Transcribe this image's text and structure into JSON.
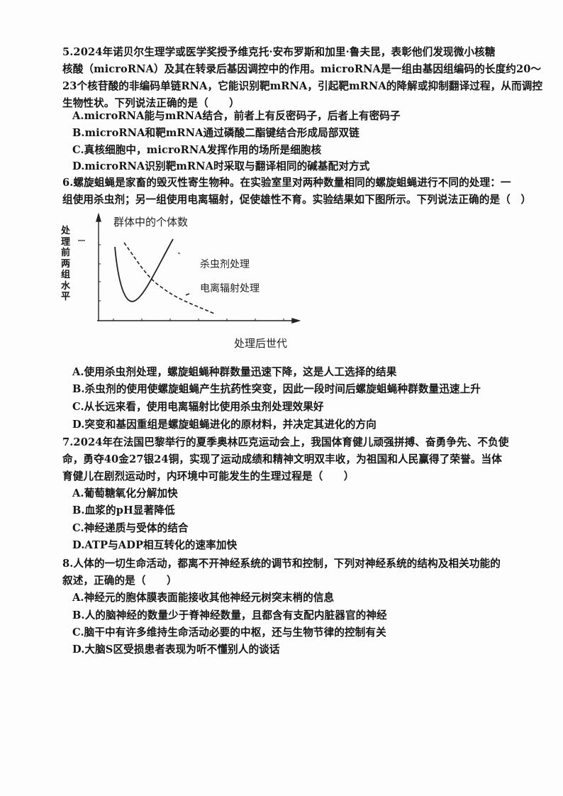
{
  "q5": {
    "lines": [
      "5.2024年诺贝尔生理学或医学奖授予维克托·安布罗斯和加里·鲁夫昆，表彰他们发现微小核糖",
      "核酸（microRNA）及其在转录后基因调控中的作用。microRNA是一组由基因组编码的长度约20～",
      "23个核苷酸的非编码单链RNA，它能识别靶mRNA，引起靶mRNA的降解或抑制翻译过程，从而调控",
      "生物性状。下列说法正确的是（　　）"
    ],
    "options": [
      "A.microRNA能与mRNA结合，前者上有反密码子，后者上有密码子",
      "B.microRNA和靶mRNA通过磷酸二酯键结合形成局部双链",
      "C.真核细胞中，microRNA发挥作用的场所是细胞核",
      "D.microRNA识别靶mRNA时采取与翻译相同的碱基配对方式"
    ]
  },
  "q6": {
    "lines": [
      "6.螺旋蛆蝇是家畜的毁灭性寄生物种。在实验室里对两种数量相同的螺旋蛆蝇进行不同的处理：一",
      "组使用杀虫剂；另一组使用电离辐射，促使雄性不育。实验结果如下图所示。下列说法正确的是（　）"
    ],
    "figure": {
      "y_title": "群体中的个体数",
      "y_side_label": "处理前两组水平",
      "x_label": "处理后世代",
      "series": [
        {
          "name": "杀虫剂处理",
          "style": "solid"
        },
        {
          "name": "电离辐射处理",
          "style": "dashed"
        }
      ]
    },
    "options": [
      "A.使用杀虫剂处理，螺旋蛆蝇种群数量迅速下降，这是人工选择的结果",
      "B.杀虫剂的使用使螺旋蛆蝇产生抗药性突变，因此一段时间后螺旋蛆蝇种群数量迅速上升",
      "C.从长远来看，使用电离辐射比使用杀虫剂处理效果好",
      "D.突变和基因重组是螺旋蛆蝇进化的原材料，并决定其进化的方向"
    ]
  },
  "q7": {
    "lines": [
      "7.2024年在法国巴黎举行的夏季奥林匹克运动会上，我国体育健儿顽强拼搏、奋勇争先、不负使",
      "命，勇夺40金27银24铜，实现了运动成绩和精神文明双丰收，为祖国和人民赢得了荣誉。当体",
      "育健儿在剧烈运动时，内环境中可能发生的生理过程是（　　）"
    ],
    "options": [
      "A.葡萄糖氧化分解加快",
      "B.血浆的pH显著降低",
      "C.神经递质与受体的结合",
      "D.ATP与ADP相互转化的速率加快"
    ]
  },
  "q8": {
    "lines": [
      "8.人体的一切生命活动，都离不开神经系统的调节和控制，下列对神经系统的结构及相关功能的",
      "叙述，正确的是（　　）"
    ],
    "options": [
      "A.神经元的胞体膜表面能接收其他神经元树突末梢的信息",
      "B.人的脑神经的数量少于脊神经数量，且都含有支配内脏器官的神经",
      "C.脑干中有许多维持生命活动必要的中枢，还与生物节律的控制有关",
      "D.大脑S区受损患者表现为听不懂别人的谈话"
    ]
  }
}
